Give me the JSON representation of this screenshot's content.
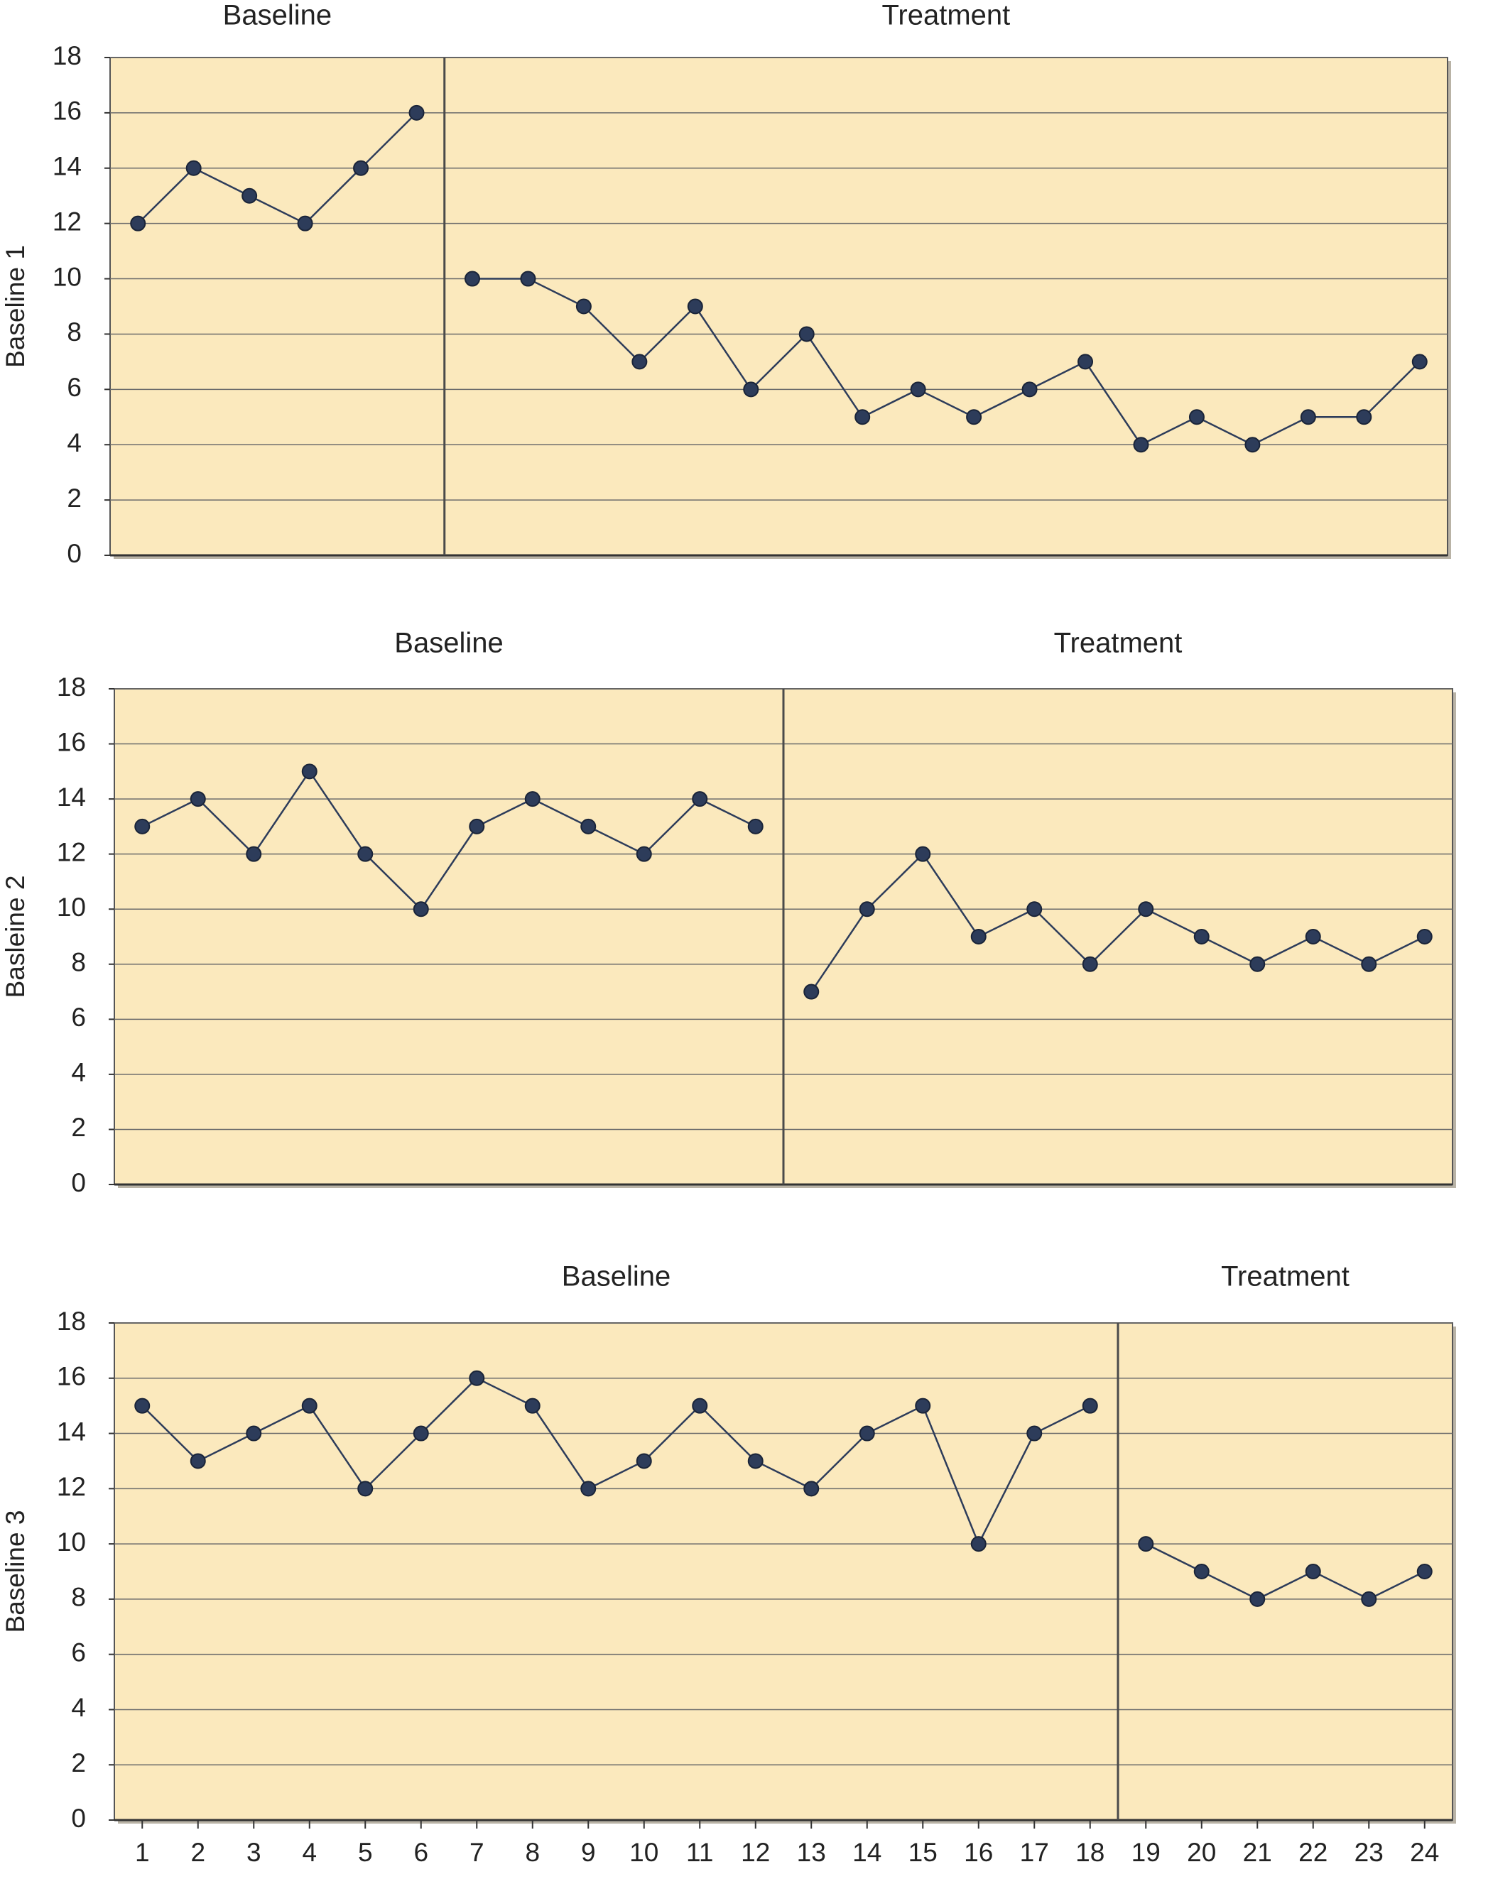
{
  "chart_data": [
    {
      "type": "line",
      "ylabel": "Baseline 1",
      "x": [
        1,
        2,
        3,
        4,
        5,
        6,
        7,
        8,
        9,
        10,
        11,
        12,
        13,
        14,
        15,
        16,
        17,
        18,
        19,
        20,
        21,
        22,
        23,
        24
      ],
      "series": [
        {
          "name": "Baseline",
          "color": "#2d3c5a",
          "values": [
            12,
            14,
            13,
            12,
            14,
            16,
            null,
            null,
            null,
            null,
            null,
            null,
            null,
            null,
            null,
            null,
            null,
            null,
            null,
            null,
            null,
            null,
            null,
            null
          ]
        },
        {
          "name": "Treatment",
          "color": "#2d3c5a",
          "values": [
            null,
            null,
            null,
            null,
            null,
            null,
            10,
            10,
            9,
            7,
            9,
            6,
            8,
            5,
            6,
            5,
            6,
            7,
            4,
            5,
            4,
            5,
            5,
            7
          ]
        }
      ],
      "phase_divider": 6.5,
      "xlim": [
        0.5,
        24.5
      ],
      "ylim": [
        0,
        18
      ],
      "yticks": [
        0,
        2,
        4,
        6,
        8,
        10,
        12,
        14,
        16,
        18
      ],
      "grid": true,
      "plot_background": "#fbe9bd"
    },
    {
      "type": "line",
      "ylabel": "Basleine 2",
      "x": [
        1,
        2,
        3,
        4,
        5,
        6,
        7,
        8,
        9,
        10,
        11,
        12,
        13,
        14,
        15,
        16,
        17,
        18,
        19,
        20,
        21,
        22,
        23,
        24
      ],
      "series": [
        {
          "name": "Baseline",
          "color": "#2d3c5a",
          "values": [
            13,
            14,
            12,
            15,
            12,
            10,
            13,
            14,
            13,
            12,
            14,
            13,
            null,
            null,
            null,
            null,
            null,
            null,
            null,
            null,
            null,
            null,
            null,
            null
          ]
        },
        {
          "name": "Treatment",
          "color": "#2d3c5a",
          "values": [
            null,
            null,
            null,
            null,
            null,
            null,
            null,
            null,
            null,
            null,
            null,
            null,
            7,
            10,
            12,
            9,
            10,
            8,
            10,
            9,
            8,
            9,
            8,
            9
          ]
        }
      ],
      "phase_divider": 12.5,
      "xlim": [
        0.5,
        24.5
      ],
      "ylim": [
        0,
        18
      ],
      "yticks": [
        0,
        2,
        4,
        6,
        8,
        10,
        12,
        14,
        16,
        18
      ],
      "grid": true,
      "plot_background": "#fbe9bd"
    },
    {
      "type": "line",
      "ylabel": "Baseline 3",
      "x": [
        1,
        2,
        3,
        4,
        5,
        6,
        7,
        8,
        9,
        10,
        11,
        12,
        13,
        14,
        15,
        16,
        17,
        18,
        19,
        20,
        21,
        22,
        23,
        24
      ],
      "series": [
        {
          "name": "Baseline",
          "color": "#2d3c5a",
          "values": [
            15,
            13,
            14,
            15,
            12,
            14,
            16,
            15,
            12,
            13,
            15,
            13,
            12,
            14,
            15,
            10,
            14,
            15,
            null,
            null,
            null,
            null,
            null,
            null
          ]
        },
        {
          "name": "Treatment",
          "color": "#2d3c5a",
          "values": [
            null,
            null,
            null,
            null,
            null,
            null,
            null,
            null,
            null,
            null,
            null,
            null,
            null,
            null,
            null,
            null,
            null,
            null,
            10,
            9,
            8,
            9,
            8,
            9
          ]
        }
      ],
      "phase_divider": 18.5,
      "xlim": [
        0.5,
        24.5
      ],
      "ylim": [
        0,
        18
      ],
      "yticks": [
        0,
        2,
        4,
        6,
        8,
        10,
        12,
        14,
        16,
        18
      ],
      "xticks": [
        1,
        2,
        3,
        4,
        5,
        6,
        7,
        8,
        9,
        10,
        11,
        12,
        13,
        14,
        15,
        16,
        17,
        18,
        19,
        20,
        21,
        22,
        23,
        24
      ],
      "grid": true,
      "plot_background": "#fbe9bd"
    }
  ]
}
